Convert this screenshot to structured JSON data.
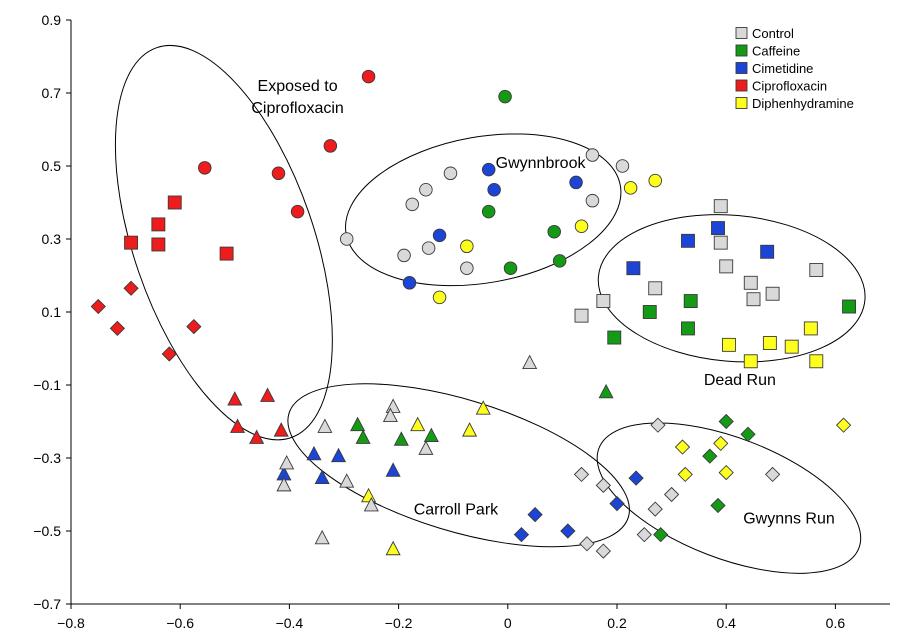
{
  "chart_data": {
    "type": "scatter",
    "xlim": [
      -0.8,
      0.7
    ],
    "ylim": [
      -0.7,
      0.9
    ],
    "x_ticks": [
      -0.8,
      -0.6,
      -0.4,
      -0.2,
      0,
      0.2,
      0.4,
      0.6
    ],
    "x_tick_labels": [
      "−0.8",
      "−0.6",
      "−0.4",
      "−0.2",
      "0",
      "0.2",
      "0.4",
      "0.6"
    ],
    "y_ticks": [
      -0.7,
      -0.5,
      -0.3,
      -0.1,
      0.1,
      0.3,
      0.5,
      0.7,
      0.9
    ],
    "y_tick_labels": [
      "−0.7",
      "−0.5",
      "−0.3",
      "−0.1",
      "0.1",
      "0.3",
      "0.5",
      "0.7",
      "0.9"
    ],
    "grid": false,
    "legend": {
      "placement": "top-right",
      "entries": [
        {
          "label": "Control",
          "color": "#d9d9d9"
        },
        {
          "label": "Caffeine",
          "color": "#149a14"
        },
        {
          "label": "Cimetidine",
          "color": "#1c45d8"
        },
        {
          "label": "Ciprofloxacin",
          "color": "#ee1c1c"
        },
        {
          "label": "Diphenhydramine",
          "color": "#ffff1e"
        }
      ]
    },
    "groups": [
      {
        "label": "Exposed to Ciprofloxacin",
        "lines": [
          "Exposed to",
          "Ciprofloxacin"
        ],
        "center": [
          -0.52,
          0.29
        ],
        "radii": [
          0.165,
          0.565
        ],
        "rotation_deg": -19
      },
      {
        "label": "Gwynnbrook",
        "lines": [
          "Gwynnbrook"
        ],
        "center": [
          -0.045,
          0.38
        ],
        "radii": [
          0.255,
          0.2
        ],
        "rotation_deg": -10
      },
      {
        "label": "Dead Run",
        "lines": [
          "Dead Run"
        ],
        "center": [
          0.41,
          0.165
        ],
        "radii": [
          0.245,
          0.2
        ],
        "rotation_deg": 5
      },
      {
        "label": "Carroll Park",
        "lines": [
          "Carroll Park"
        ],
        "center": [
          -0.09,
          -0.32
        ],
        "radii": [
          0.325,
          0.18
        ],
        "rotation_deg": 17
      },
      {
        "label": "Gwynns Run",
        "lines": [
          "Gwynns Run"
        ],
        "center": [
          0.405,
          -0.41
        ],
        "radii": [
          0.255,
          0.165
        ],
        "rotation_deg": 21
      }
    ],
    "group_label_positions": [
      {
        "group": "Exposed to Ciprofloxacin",
        "x": -0.385,
        "y": 0.705
      },
      {
        "group": "Gwynnbrook",
        "x": 0.06,
        "y": 0.495
      },
      {
        "group": "Dead Run",
        "x": 0.425,
        "y": -0.1
      },
      {
        "group": "Carroll Park",
        "x": -0.095,
        "y": -0.455
      },
      {
        "group": "Gwynns Run",
        "x": 0.515,
        "y": -0.48
      }
    ],
    "series": [
      {
        "name": "Ciprofloxacin",
        "color": "#ee1c1c",
        "points": [
          {
            "x": -0.255,
            "y": 0.745,
            "marker": "circle"
          },
          {
            "x": -0.325,
            "y": 0.555,
            "marker": "circle"
          },
          {
            "x": -0.555,
            "y": 0.495,
            "marker": "circle"
          },
          {
            "x": -0.42,
            "y": 0.48,
            "marker": "circle"
          },
          {
            "x": -0.385,
            "y": 0.375,
            "marker": "circle"
          },
          {
            "x": -0.61,
            "y": 0.4,
            "marker": "square"
          },
          {
            "x": -0.64,
            "y": 0.34,
            "marker": "square"
          },
          {
            "x": -0.69,
            "y": 0.29,
            "marker": "square"
          },
          {
            "x": -0.64,
            "y": 0.285,
            "marker": "square"
          },
          {
            "x": -0.515,
            "y": 0.26,
            "marker": "square"
          },
          {
            "x": -0.69,
            "y": 0.165,
            "marker": "diamond"
          },
          {
            "x": -0.75,
            "y": 0.115,
            "marker": "diamond"
          },
          {
            "x": -0.575,
            "y": 0.06,
            "marker": "diamond"
          },
          {
            "x": -0.715,
            "y": 0.055,
            "marker": "diamond"
          },
          {
            "x": -0.62,
            "y": -0.015,
            "marker": "diamond"
          },
          {
            "x": -0.5,
            "y": -0.14,
            "marker": "triangle"
          },
          {
            "x": -0.44,
            "y": -0.13,
            "marker": "triangle"
          },
          {
            "x": -0.495,
            "y": -0.215,
            "marker": "triangle"
          },
          {
            "x": -0.415,
            "y": -0.225,
            "marker": "triangle"
          },
          {
            "x": -0.46,
            "y": -0.245,
            "marker": "triangle"
          }
        ]
      },
      {
        "name": "Caffeine",
        "color": "#149a14",
        "points": [
          {
            "x": -0.005,
            "y": 0.69,
            "marker": "circle"
          },
          {
            "x": -0.035,
            "y": 0.375,
            "marker": "circle"
          },
          {
            "x": 0.085,
            "y": 0.32,
            "marker": "circle"
          },
          {
            "x": 0.005,
            "y": 0.22,
            "marker": "circle"
          },
          {
            "x": 0.095,
            "y": 0.24,
            "marker": "circle"
          },
          {
            "x": 0.335,
            "y": 0.13,
            "marker": "square"
          },
          {
            "x": 0.26,
            "y": 0.1,
            "marker": "square"
          },
          {
            "x": 0.33,
            "y": 0.055,
            "marker": "square"
          },
          {
            "x": 0.195,
            "y": 0.03,
            "marker": "square"
          },
          {
            "x": 0.625,
            "y": 0.115,
            "marker": "square"
          },
          {
            "x": 0.4,
            "y": -0.2,
            "marker": "diamond"
          },
          {
            "x": 0.44,
            "y": -0.235,
            "marker": "diamond"
          },
          {
            "x": 0.37,
            "y": -0.295,
            "marker": "diamond"
          },
          {
            "x": 0.385,
            "y": -0.43,
            "marker": "diamond"
          },
          {
            "x": 0.28,
            "y": -0.51,
            "marker": "diamond"
          },
          {
            "x": -0.275,
            "y": -0.21,
            "marker": "triangle"
          },
          {
            "x": -0.265,
            "y": -0.245,
            "marker": "triangle"
          },
          {
            "x": -0.195,
            "y": -0.25,
            "marker": "triangle"
          },
          {
            "x": -0.14,
            "y": -0.24,
            "marker": "triangle"
          },
          {
            "x": 0.18,
            "y": -0.12,
            "marker": "triangle"
          }
        ]
      },
      {
        "name": "Cimetidine",
        "color": "#1c45d8",
        "points": [
          {
            "x": -0.035,
            "y": 0.49,
            "marker": "circle"
          },
          {
            "x": -0.025,
            "y": 0.435,
            "marker": "circle"
          },
          {
            "x": 0.125,
            "y": 0.455,
            "marker": "circle"
          },
          {
            "x": -0.125,
            "y": 0.31,
            "marker": "circle"
          },
          {
            "x": -0.18,
            "y": 0.18,
            "marker": "circle"
          },
          {
            "x": 0.385,
            "y": 0.33,
            "marker": "square"
          },
          {
            "x": 0.33,
            "y": 0.295,
            "marker": "square"
          },
          {
            "x": 0.475,
            "y": 0.265,
            "marker": "square"
          },
          {
            "x": 0.23,
            "y": 0.22,
            "marker": "square"
          },
          {
            "x": 0.235,
            "y": -0.355,
            "marker": "diamond"
          },
          {
            "x": 0.2,
            "y": -0.425,
            "marker": "diamond"
          },
          {
            "x": 0.05,
            "y": -0.455,
            "marker": "diamond"
          },
          {
            "x": 0.11,
            "y": -0.5,
            "marker": "diamond"
          },
          {
            "x": 0.025,
            "y": -0.51,
            "marker": "diamond"
          },
          {
            "x": -0.355,
            "y": -0.29,
            "marker": "triangle"
          },
          {
            "x": -0.31,
            "y": -0.295,
            "marker": "triangle"
          },
          {
            "x": -0.41,
            "y": -0.345,
            "marker": "triangle"
          },
          {
            "x": -0.34,
            "y": -0.355,
            "marker": "triangle"
          },
          {
            "x": -0.21,
            "y": -0.335,
            "marker": "triangle"
          }
        ]
      },
      {
        "name": "Diphenhydramine",
        "color": "#ffff1e",
        "points": [
          {
            "x": 0.27,
            "y": 0.46,
            "marker": "circle"
          },
          {
            "x": 0.225,
            "y": 0.44,
            "marker": "circle"
          },
          {
            "x": 0.135,
            "y": 0.335,
            "marker": "circle"
          },
          {
            "x": -0.075,
            "y": 0.28,
            "marker": "circle"
          },
          {
            "x": -0.125,
            "y": 0.14,
            "marker": "circle"
          },
          {
            "x": 0.555,
            "y": 0.055,
            "marker": "square"
          },
          {
            "x": 0.48,
            "y": 0.015,
            "marker": "square"
          },
          {
            "x": 0.52,
            "y": 0.005,
            "marker": "square"
          },
          {
            "x": 0.405,
            "y": 0.01,
            "marker": "square"
          },
          {
            "x": 0.445,
            "y": -0.035,
            "marker": "square"
          },
          {
            "x": 0.565,
            "y": -0.035,
            "marker": "square"
          },
          {
            "x": 0.615,
            "y": -0.21,
            "marker": "diamond"
          },
          {
            "x": 0.39,
            "y": -0.26,
            "marker": "diamond"
          },
          {
            "x": 0.32,
            "y": -0.27,
            "marker": "diamond"
          },
          {
            "x": 0.325,
            "y": -0.345,
            "marker": "diamond"
          },
          {
            "x": 0.4,
            "y": -0.34,
            "marker": "diamond"
          },
          {
            "x": -0.045,
            "y": -0.165,
            "marker": "triangle"
          },
          {
            "x": -0.165,
            "y": -0.21,
            "marker": "triangle"
          },
          {
            "x": -0.07,
            "y": -0.225,
            "marker": "triangle"
          },
          {
            "x": -0.255,
            "y": -0.405,
            "marker": "triangle"
          },
          {
            "x": -0.21,
            "y": -0.55,
            "marker": "triangle"
          }
        ]
      },
      {
        "name": "Control",
        "color": "#d9d9d9",
        "points": [
          {
            "x": -0.295,
            "y": 0.3,
            "marker": "circle"
          },
          {
            "x": -0.19,
            "y": 0.255,
            "marker": "circle"
          },
          {
            "x": -0.175,
            "y": 0.395,
            "marker": "circle"
          },
          {
            "x": -0.15,
            "y": 0.435,
            "marker": "circle"
          },
          {
            "x": -0.105,
            "y": 0.48,
            "marker": "circle"
          },
          {
            "x": -0.145,
            "y": 0.275,
            "marker": "circle"
          },
          {
            "x": -0.075,
            "y": 0.22,
            "marker": "circle"
          },
          {
            "x": 0.155,
            "y": 0.53,
            "marker": "circle"
          },
          {
            "x": 0.21,
            "y": 0.5,
            "marker": "circle"
          },
          {
            "x": 0.155,
            "y": 0.405,
            "marker": "circle"
          },
          {
            "x": 0.39,
            "y": 0.39,
            "marker": "square"
          },
          {
            "x": 0.39,
            "y": 0.29,
            "marker": "square"
          },
          {
            "x": 0.4,
            "y": 0.225,
            "marker": "square"
          },
          {
            "x": 0.565,
            "y": 0.215,
            "marker": "square"
          },
          {
            "x": 0.27,
            "y": 0.165,
            "marker": "square"
          },
          {
            "x": 0.445,
            "y": 0.18,
            "marker": "square"
          },
          {
            "x": 0.485,
            "y": 0.15,
            "marker": "square"
          },
          {
            "x": 0.45,
            "y": 0.135,
            "marker": "square"
          },
          {
            "x": 0.175,
            "y": 0.13,
            "marker": "square"
          },
          {
            "x": 0.135,
            "y": 0.09,
            "marker": "square"
          },
          {
            "x": 0.275,
            "y": -0.21,
            "marker": "diamond"
          },
          {
            "x": 0.135,
            "y": -0.345,
            "marker": "diamond"
          },
          {
            "x": 0.175,
            "y": -0.375,
            "marker": "diamond"
          },
          {
            "x": 0.3,
            "y": -0.4,
            "marker": "diamond"
          },
          {
            "x": 0.485,
            "y": -0.345,
            "marker": "diamond"
          },
          {
            "x": 0.27,
            "y": -0.44,
            "marker": "diamond"
          },
          {
            "x": 0.25,
            "y": -0.51,
            "marker": "diamond"
          },
          {
            "x": 0.145,
            "y": -0.535,
            "marker": "diamond"
          },
          {
            "x": 0.175,
            "y": -0.555,
            "marker": "diamond"
          },
          {
            "x": 0.04,
            "y": -0.04,
            "marker": "triangle"
          },
          {
            "x": -0.21,
            "y": -0.16,
            "marker": "triangle"
          },
          {
            "x": -0.215,
            "y": -0.185,
            "marker": "triangle"
          },
          {
            "x": -0.335,
            "y": -0.215,
            "marker": "triangle"
          },
          {
            "x": -0.15,
            "y": -0.275,
            "marker": "triangle"
          },
          {
            "x": -0.405,
            "y": -0.315,
            "marker": "triangle"
          },
          {
            "x": -0.41,
            "y": -0.375,
            "marker": "triangle"
          },
          {
            "x": -0.295,
            "y": -0.365,
            "marker": "triangle"
          },
          {
            "x": -0.25,
            "y": -0.43,
            "marker": "triangle"
          },
          {
            "x": -0.34,
            "y": -0.52,
            "marker": "triangle"
          }
        ]
      }
    ]
  }
}
